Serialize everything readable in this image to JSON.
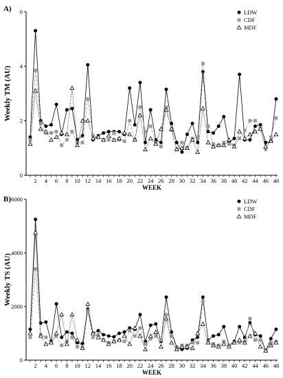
{
  "chart_data": [
    {
      "panel_label": "A)",
      "type": "line",
      "ylabel": "Weekly TM (AU)",
      "xlabel": "WEEK",
      "ylim": [
        0,
        6
      ],
      "yticks": [
        0,
        2,
        4,
        6
      ],
      "xlim": [
        1,
        48
      ],
      "xticks": [
        2,
        4,
        6,
        8,
        10,
        12,
        14,
        16,
        18,
        20,
        22,
        24,
        26,
        28,
        30,
        32,
        34,
        36,
        38,
        40,
        42,
        44,
        46,
        48
      ],
      "legend_position": "top-right",
      "x": [
        1,
        2,
        3,
        4,
        5,
        6,
        7,
        8,
        9,
        10,
        11,
        12,
        13,
        14,
        15,
        16,
        17,
        18,
        19,
        20,
        21,
        22,
        23,
        24,
        25,
        26,
        27,
        28,
        29,
        30,
        31,
        32,
        33,
        34,
        35,
        36,
        37,
        38,
        39,
        40,
        41,
        42,
        43,
        44,
        45,
        46,
        47,
        48
      ],
      "series": [
        {
          "name": "LDW",
          "marker": "circle",
          "color": "#000000",
          "dash": "",
          "values": [
            1.4,
            5.3,
            2.0,
            1.8,
            1.85,
            2.6,
            1.5,
            2.4,
            2.45,
            1.3,
            1.45,
            4.05,
            1.3,
            1.45,
            1.55,
            1.6,
            1.6,
            1.6,
            1.5,
            3.2,
            1.85,
            3.4,
            1.2,
            2.4,
            1.3,
            1.2,
            3.15,
            1.9,
            1.2,
            0.85,
            1.5,
            1.9,
            1.2,
            3.8,
            1.6,
            1.55,
            1.8,
            2.15,
            1.2,
            1.35,
            3.7,
            1.3,
            1.3,
            1.8,
            1.85,
            1.2,
            1.25,
            2.8
          ]
        },
        {
          "name": "CDF",
          "marker": "square",
          "color": "#999999",
          "dash": "4,2",
          "values": [
            1.3,
            3.85,
            1.9,
            1.55,
            1.55,
            1.6,
            1.1,
            1.3,
            1.6,
            1.2,
            1.2,
            2.8,
            1.45,
            1.4,
            1.3,
            1.3,
            1.55,
            1.3,
            1.25,
            2.0,
            1.3,
            2.5,
            1.6,
            1.8,
            1.2,
            1.05,
            2.5,
            1.65,
            0.95,
            1.2,
            1.0,
            1.35,
            1.4,
            4.1,
            1.8,
            1.15,
            1.1,
            1.2,
            1.15,
            1.1,
            1.35,
            1.65,
            2.0,
            2.0,
            1.75,
            0.95,
            1.4,
            2.1
          ]
        },
        {
          "name": "MDF",
          "marker": "triangle",
          "color": "#000000",
          "dash": "1,1.5",
          "values": [
            1.15,
            3.1,
            1.7,
            1.6,
            1.3,
            1.4,
            1.55,
            1.5,
            3.2,
            1.1,
            2.0,
            2.0,
            1.35,
            1.4,
            1.3,
            1.45,
            1.3,
            1.35,
            1.55,
            1.5,
            1.3,
            2.2,
            0.95,
            1.35,
            1.15,
            1.7,
            2.4,
            1.7,
            0.95,
            1.0,
            1.0,
            1.3,
            0.85,
            2.45,
            1.2,
            1.05,
            1.1,
            1.1,
            1.3,
            1.05,
            1.6,
            1.35,
            1.5,
            1.6,
            1.7,
            1.05,
            1.25,
            1.5
          ]
        }
      ]
    },
    {
      "panel_label": "B)",
      "type": "line",
      "ylabel": "Weekly TS (AU)",
      "xlabel": "WEEK",
      "ylim": [
        0,
        6000
      ],
      "yticks": [
        0,
        2000,
        4000,
        6000
      ],
      "xlim": [
        1,
        48
      ],
      "xticks": [
        2,
        4,
        6,
        8,
        10,
        12,
        14,
        16,
        18,
        20,
        22,
        24,
        26,
        28,
        30,
        32,
        34,
        36,
        38,
        40,
        42,
        44,
        46,
        48
      ],
      "legend_position": "top-right",
      "x": [
        1,
        2,
        3,
        4,
        5,
        6,
        7,
        8,
        9,
        10,
        11,
        12,
        13,
        14,
        15,
        16,
        17,
        18,
        19,
        20,
        21,
        22,
        23,
        24,
        25,
        26,
        27,
        28,
        29,
        30,
        31,
        32,
        33,
        34,
        35,
        36,
        37,
        38,
        39,
        40,
        41,
        42,
        43,
        44,
        45,
        46,
        47,
        48
      ],
      "series": [
        {
          "name": "LDW",
          "marker": "circle",
          "color": "#000000",
          "dash": "",
          "values": [
            1150,
            5250,
            1380,
            1420,
            700,
            2100,
            850,
            1050,
            1000,
            650,
            620,
            1900,
            1000,
            1100,
            950,
            900,
            870,
            1000,
            1050,
            1200,
            1150,
            1700,
            700,
            1300,
            1350,
            700,
            2350,
            1050,
            480,
            400,
            450,
            750,
            850,
            2350,
            750,
            900,
            950,
            1250,
            550,
            700,
            1250,
            850,
            1400,
            950,
            900,
            350,
            800,
            1150
          ]
        },
        {
          "name": "CDF",
          "marker": "square",
          "color": "#999999",
          "dash": "4,2",
          "values": [
            850,
            3400,
            950,
            850,
            650,
            900,
            550,
            700,
            850,
            500,
            450,
            1850,
            850,
            950,
            750,
            650,
            700,
            750,
            700,
            1100,
            900,
            1200,
            600,
            800,
            900,
            750,
            1700,
            900,
            450,
            550,
            550,
            650,
            650,
            2200,
            700,
            600,
            550,
            700,
            550,
            650,
            650,
            700,
            1550,
            750,
            750,
            350,
            650,
            700
          ]
        },
        {
          "name": "MDF",
          "marker": "triangle",
          "color": "#000000",
          "dash": "1,1.5",
          "values": [
            1000,
            4750,
            900,
            600,
            650,
            1000,
            1700,
            600,
            1700,
            750,
            450,
            2100,
            1000,
            850,
            750,
            600,
            700,
            750,
            900,
            600,
            1200,
            900,
            400,
            900,
            1050,
            500,
            1550,
            650,
            400,
            500,
            500,
            450,
            1000,
            1350,
            650,
            550,
            500,
            600,
            500,
            650,
            750,
            650,
            900,
            1000,
            500,
            350,
            550,
            650
          ]
        }
      ]
    }
  ]
}
